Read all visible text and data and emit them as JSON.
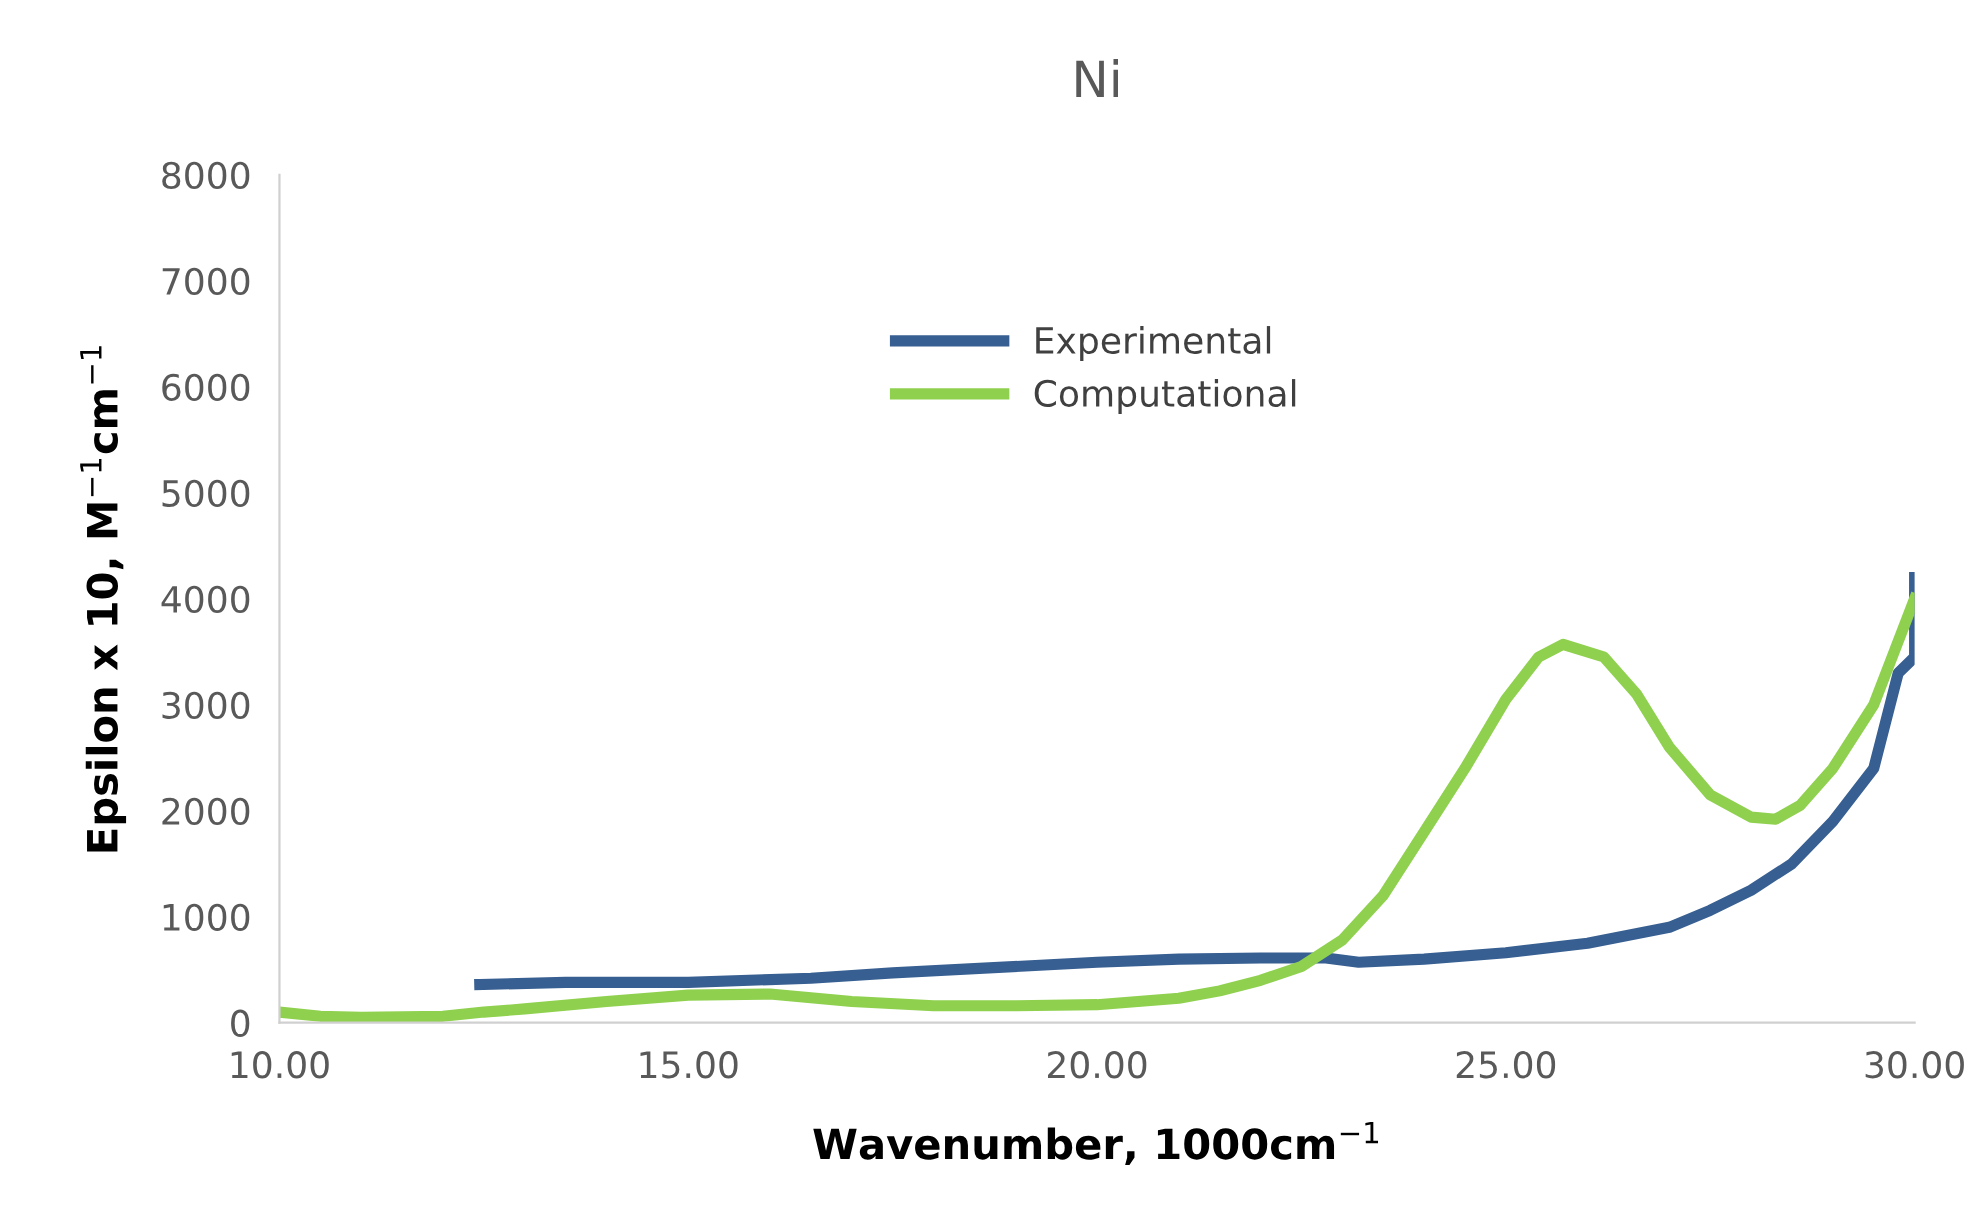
{
  "chart_data": {
    "type": "line",
    "title": "Ni",
    "xlabel": "Wavenumber, 1000cm$^{−1}$",
    "ylabel": "Epsilon x 10, M$^{−1}$cm$^{−1}$",
    "xlim": [
      10,
      30
    ],
    "xticks": [
      {
        "value": 10,
        "label": "10.00"
      },
      {
        "value": 15,
        "label": "15.00"
      },
      {
        "value": 20,
        "label": "20.00"
      },
      {
        "value": 25,
        "label": "25.00"
      },
      {
        "value": 30,
        "label": "30.00"
      }
    ],
    "ylim": [
      0,
      8000
    ],
    "yticks": [
      0,
      1000,
      2000,
      3000,
      4000,
      5000,
      6000,
      7000,
      8000
    ],
    "grid": false,
    "legend": "top",
    "marker": "none",
    "line_style": "solid",
    "series": [
      {
        "name": "Experimental",
        "color": "#375f91",
        "x": [
          12.45,
          13.5,
          15,
          16.5,
          17.5,
          18.5,
          20,
          21,
          22,
          22.8,
          23.2,
          24,
          25,
          26,
          27,
          27.5,
          28,
          28.5,
          29,
          29.5,
          29.8,
          30,
          30
        ],
        "values": [
          360,
          380,
          380,
          420,
          470,
          510,
          570,
          600,
          610,
          610,
          570,
          600,
          660,
          750,
          900,
          1060,
          1250,
          1500,
          1900,
          2400,
          3300,
          3450,
          4200
        ]
      },
      {
        "name": "Computational",
        "color": "#8fd14f",
        "x": [
          10,
          10.5,
          11,
          12,
          12.5,
          13,
          14,
          15,
          16,
          17,
          18,
          19,
          20,
          21,
          21.5,
          22,
          22.5,
          23,
          23.5,
          24,
          24.5,
          25,
          25.4,
          25.7,
          26.2,
          26.6,
          27,
          27.5,
          28,
          28.3,
          28.6,
          29,
          29.5,
          30
        ],
        "values": [
          100,
          60,
          50,
          60,
          100,
          130,
          200,
          260,
          270,
          200,
          160,
          160,
          170,
          230,
          300,
          400,
          530,
          780,
          1200,
          1800,
          2400,
          3050,
          3450,
          3570,
          3450,
          3100,
          2600,
          2150,
          1940,
          1920,
          2050,
          2400,
          3000,
          4000
        ]
      }
    ]
  }
}
